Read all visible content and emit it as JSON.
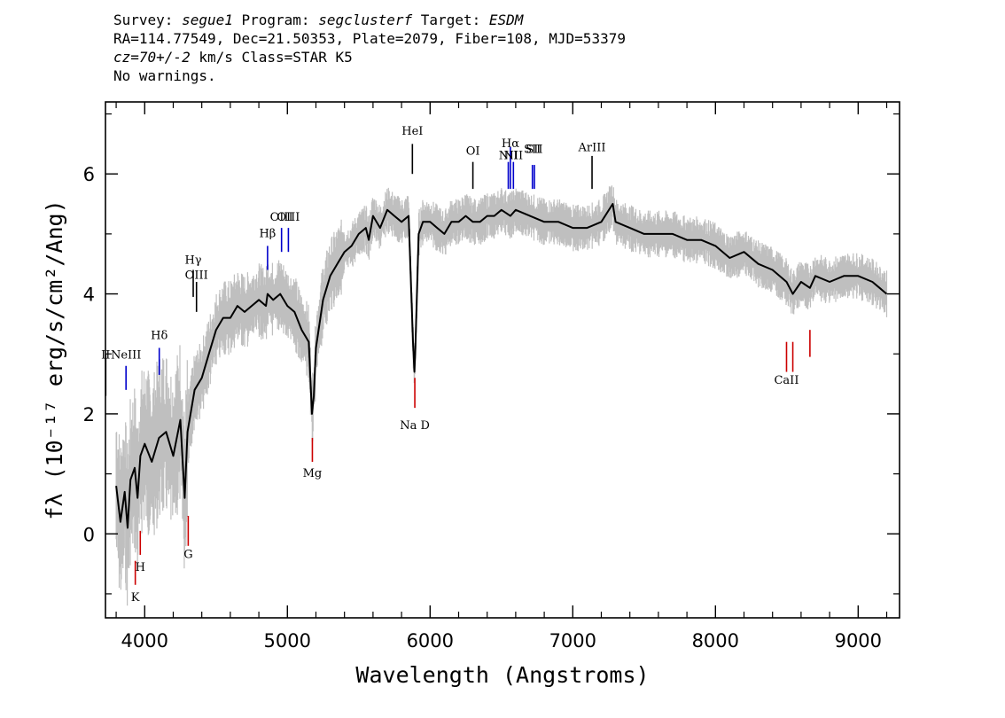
{
  "header": {
    "line1": {
      "survey_label": "Survey: ",
      "survey": "segue1",
      "program_label": " Program: ",
      "program": "segclusterf",
      "target_label": " Target: ",
      "target": "ESDM"
    },
    "line2": "RA=114.77549, Dec=21.50353, Plate=2079, Fiber=108, MJD=53379",
    "line3": {
      "cz": "cz=70+/-2",
      "rest": " km/s Class=STAR K5"
    },
    "line4": "No warnings."
  },
  "chart_data": {
    "type": "line",
    "xlabel": "Wavelength (Angstroms)",
    "ylabel": "fλ (10⁻¹⁷ erg/s/cm²/Ang)",
    "xlim": [
      3725,
      9290
    ],
    "ylim": [
      -1.4,
      7.2
    ],
    "xticks": [
      4000,
      5000,
      6000,
      7000,
      8000,
      9000
    ],
    "yticks": [
      0,
      2,
      4,
      6
    ],
    "tick_labels_x": [
      "4000",
      "5000",
      "6000",
      "7000",
      "8000",
      "9000"
    ],
    "tick_labels_y": [
      "0",
      "2",
      "4",
      "6"
    ],
    "colors": {
      "flux": "#000000",
      "error": "#bfbfbf",
      "emission": "#0000cc",
      "absorption": "#cc0000",
      "other_lines": "#000000"
    },
    "series": [
      {
        "role": "flux",
        "x": [
          3800,
          3830,
          3860,
          3880,
          3900,
          3930,
          3950,
          3970,
          4000,
          4050,
          4100,
          4150,
          4200,
          4250,
          4280,
          4300,
          4350,
          4400,
          4450,
          4500,
          4550,
          4600,
          4650,
          4700,
          4750,
          4800,
          4850,
          4861,
          4900,
          4950,
          5000,
          5050,
          5100,
          5150,
          5172,
          5185,
          5200,
          5250,
          5300,
          5350,
          5400,
          5450,
          5500,
          5550,
          5570,
          5600,
          5650,
          5700,
          5750,
          5800,
          5850,
          5880,
          5890,
          5896,
          5920,
          5950,
          6000,
          6050,
          6100,
          6150,
          6200,
          6250,
          6300,
          6350,
          6400,
          6450,
          6500,
          6563,
          6600,
          6700,
          6800,
          6900,
          7000,
          7100,
          7200,
          7280,
          7300,
          7400,
          7500,
          7600,
          7700,
          7800,
          7900,
          8000,
          8100,
          8200,
          8300,
          8400,
          8498,
          8542,
          8600,
          8662,
          8700,
          8800,
          8900,
          9000,
          9100,
          9150,
          9200
        ],
        "y": [
          0.8,
          0.2,
          0.7,
          0.1,
          0.9,
          1.1,
          0.6,
          1.3,
          1.5,
          1.2,
          1.6,
          1.7,
          1.3,
          1.9,
          0.6,
          1.7,
          2.4,
          2.6,
          3.0,
          3.4,
          3.6,
          3.6,
          3.8,
          3.7,
          3.8,
          3.9,
          3.8,
          4.0,
          3.9,
          4.0,
          3.8,
          3.7,
          3.4,
          3.2,
          2.0,
          2.3,
          3.1,
          3.9,
          4.3,
          4.5,
          4.7,
          4.8,
          5.0,
          5.1,
          4.9,
          5.3,
          5.1,
          5.4,
          5.3,
          5.2,
          5.3,
          3.2,
          2.7,
          3.0,
          5.0,
          5.2,
          5.2,
          5.1,
          5.0,
          5.2,
          5.2,
          5.3,
          5.2,
          5.2,
          5.3,
          5.3,
          5.4,
          5.3,
          5.4,
          5.3,
          5.2,
          5.2,
          5.1,
          5.1,
          5.2,
          5.5,
          5.2,
          5.1,
          5.0,
          5.0,
          5.0,
          4.9,
          4.9,
          4.8,
          4.6,
          4.7,
          4.5,
          4.4,
          4.2,
          4.0,
          4.2,
          4.1,
          4.3,
          4.2,
          4.3,
          4.3,
          4.2,
          4.1,
          4.0
        ]
      }
    ],
    "spectral_lines": [
      {
        "label": "II",
        "x": 3727,
        "kind": "other",
        "y0": 2.3,
        "y1": 3.0,
        "label_y": 2.92
      },
      {
        "label": "NeIII",
        "x": 3869,
        "kind": "emission",
        "y0": 2.4,
        "y1": 2.8,
        "label_y": 2.92
      },
      {
        "label": "Hδ",
        "x": 4102,
        "kind": "emission",
        "y0": 2.65,
        "y1": 3.1,
        "label_y": 3.25
      },
      {
        "label": "Hγ",
        "x": 4340,
        "kind": "other",
        "y0": 3.95,
        "y1": 4.4,
        "label_y": 4.5
      },
      {
        "label": "OIII",
        "x": 4363,
        "kind": "other",
        "y0": 3.7,
        "y1": 4.2,
        "label_y": 4.25
      },
      {
        "label": "Hβ",
        "x": 4861,
        "kind": "emission",
        "y0": 4.4,
        "y1": 4.8,
        "label_y": 4.95
      },
      {
        "label": "OIII",
        "x": 4959,
        "kind": "emission",
        "y0": 4.7,
        "y1": 5.1,
        "label_y": 5.22
      },
      {
        "label": "OIII",
        "x": 5007,
        "kind": "emission",
        "y0": 4.7,
        "y1": 5.1,
        "label_y": 5.22
      },
      {
        "label": "HeI",
        "x": 5876,
        "kind": "other",
        "y0": 6.0,
        "y1": 6.5,
        "label_y": 6.65
      },
      {
        "label": "OI",
        "x": 6300,
        "kind": "other",
        "y0": 5.75,
        "y1": 6.2,
        "label_y": 6.32
      },
      {
        "label": "NII",
        "x": 6548,
        "kind": "emission",
        "y0": 5.75,
        "y1": 6.2,
        "label_y": 6.25
      },
      {
        "label": "Hα",
        "x": 6563,
        "kind": "emission",
        "y0": 5.75,
        "y1": 6.45,
        "label_y": 6.45
      },
      {
        "label": "NII",
        "x": 6584,
        "kind": "emission",
        "y0": 5.75,
        "y1": 6.2,
        "label_y": 6.25
      },
      {
        "label": "SII",
        "x": 6717,
        "kind": "emission",
        "y0": 5.75,
        "y1": 6.15,
        "label_y": 6.35
      },
      {
        "label": "SII",
        "x": 6731,
        "kind": "emission",
        "y0": 5.75,
        "y1": 6.15,
        "label_y": 6.35
      },
      {
        "label": "ArIII",
        "x": 7135,
        "kind": "other",
        "y0": 5.75,
        "y1": 6.3,
        "label_y": 6.38
      },
      {
        "label": "K",
        "x": 3934,
        "kind": "absorption",
        "y0": -0.85,
        "y1": -0.45,
        "label_y": -1.12
      },
      {
        "label": "H",
        "x": 3969,
        "kind": "absorption",
        "y0": -0.35,
        "y1": 0.05,
        "label_y": -0.62
      },
      {
        "label": "G",
        "x": 4305,
        "kind": "absorption",
        "y0": -0.2,
        "y1": 0.3,
        "label_y": -0.4
      },
      {
        "label": "Mg",
        "x": 5175,
        "kind": "absorption",
        "y0": 1.2,
        "y1": 1.6,
        "label_y": 0.95
      },
      {
        "label": "Na D",
        "x": 5893,
        "kind": "absorption",
        "y0": 2.1,
        "y1": 2.6,
        "label_y": 1.75
      },
      {
        "label": "CaII",
        "x": 8498,
        "kind": "absorption",
        "y0": 2.7,
        "y1": 3.2,
        "label_y": 2.5
      },
      {
        "label": "",
        "x": 8542,
        "kind": "absorption",
        "y0": 2.7,
        "y1": 3.2,
        "label_y": 2.5
      },
      {
        "label": "",
        "x": 8662,
        "kind": "absorption",
        "y0": 2.95,
        "y1": 3.4,
        "label_y": 2.5
      }
    ]
  }
}
